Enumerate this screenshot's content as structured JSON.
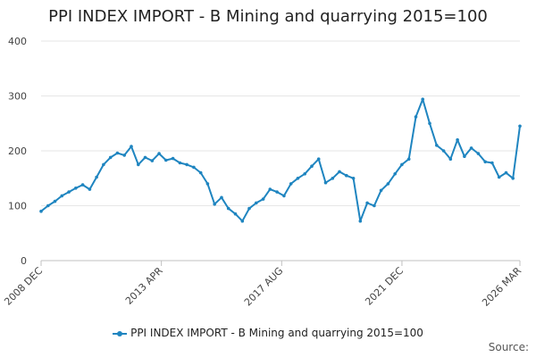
{
  "colors": {
    "series": "#1f85c0",
    "grid": "#e6e6e6",
    "axis": "#c0c0c0"
  },
  "footer": {
    "source_label": "Source:"
  },
  "chart_data": {
    "type": "line",
    "title": "PPI INDEX IMPORT - B Mining and quarrying 2015=100",
    "xlabel": "",
    "ylabel": "",
    "ylim": [
      0,
      400
    ],
    "yticks": [
      "0",
      "100",
      "200",
      "300",
      "400"
    ],
    "xticks": [
      "2008 DEC",
      "2013 APR",
      "2017 AUG",
      "2021 DEC",
      "2026 MAR"
    ],
    "legend_position": "bottom",
    "grid": true,
    "series": [
      {
        "name": "PPI INDEX IMPORT - B Mining and quarrying 2015=100",
        "x": [
          "2008-12",
          "2009-03",
          "2009-06",
          "2009-09",
          "2009-12",
          "2010-03",
          "2010-06",
          "2010-09",
          "2010-12",
          "2011-03",
          "2011-06",
          "2011-09",
          "2011-12",
          "2012-03",
          "2012-06",
          "2012-09",
          "2012-12",
          "2013-03",
          "2013-06",
          "2013-09",
          "2013-12",
          "2014-03",
          "2014-06",
          "2014-09",
          "2014-12",
          "2015-03",
          "2015-06",
          "2015-09",
          "2015-12",
          "2016-03",
          "2016-06",
          "2016-09",
          "2016-12",
          "2017-03",
          "2017-06",
          "2017-09",
          "2017-12",
          "2018-03",
          "2018-06",
          "2018-09",
          "2018-12",
          "2019-03",
          "2019-06",
          "2019-09",
          "2019-12",
          "2020-03",
          "2020-06",
          "2020-09",
          "2020-12",
          "2021-03",
          "2021-06",
          "2021-09",
          "2021-12",
          "2022-03",
          "2022-06",
          "2022-09",
          "2022-12",
          "2023-03",
          "2023-06",
          "2023-09",
          "2023-12",
          "2024-03",
          "2024-06",
          "2024-09",
          "2024-12",
          "2025-03",
          "2025-06",
          "2025-09",
          "2025-12",
          "2026-03"
        ],
        "values": [
          90,
          100,
          108,
          118,
          125,
          132,
          138,
          130,
          152,
          175,
          188,
          196,
          192,
          208,
          175,
          188,
          182,
          195,
          183,
          186,
          178,
          175,
          170,
          160,
          140,
          103,
          115,
          95,
          85,
          72,
          95,
          105,
          112,
          130,
          125,
          118,
          140,
          150,
          158,
          172,
          185,
          142,
          150,
          162,
          155,
          150,
          72,
          105,
          100,
          128,
          140,
          158,
          175,
          185,
          262,
          294,
          250,
          210,
          200,
          185,
          220,
          190,
          205,
          195,
          180,
          178,
          152,
          160,
          150,
          245
        ]
      }
    ]
  }
}
